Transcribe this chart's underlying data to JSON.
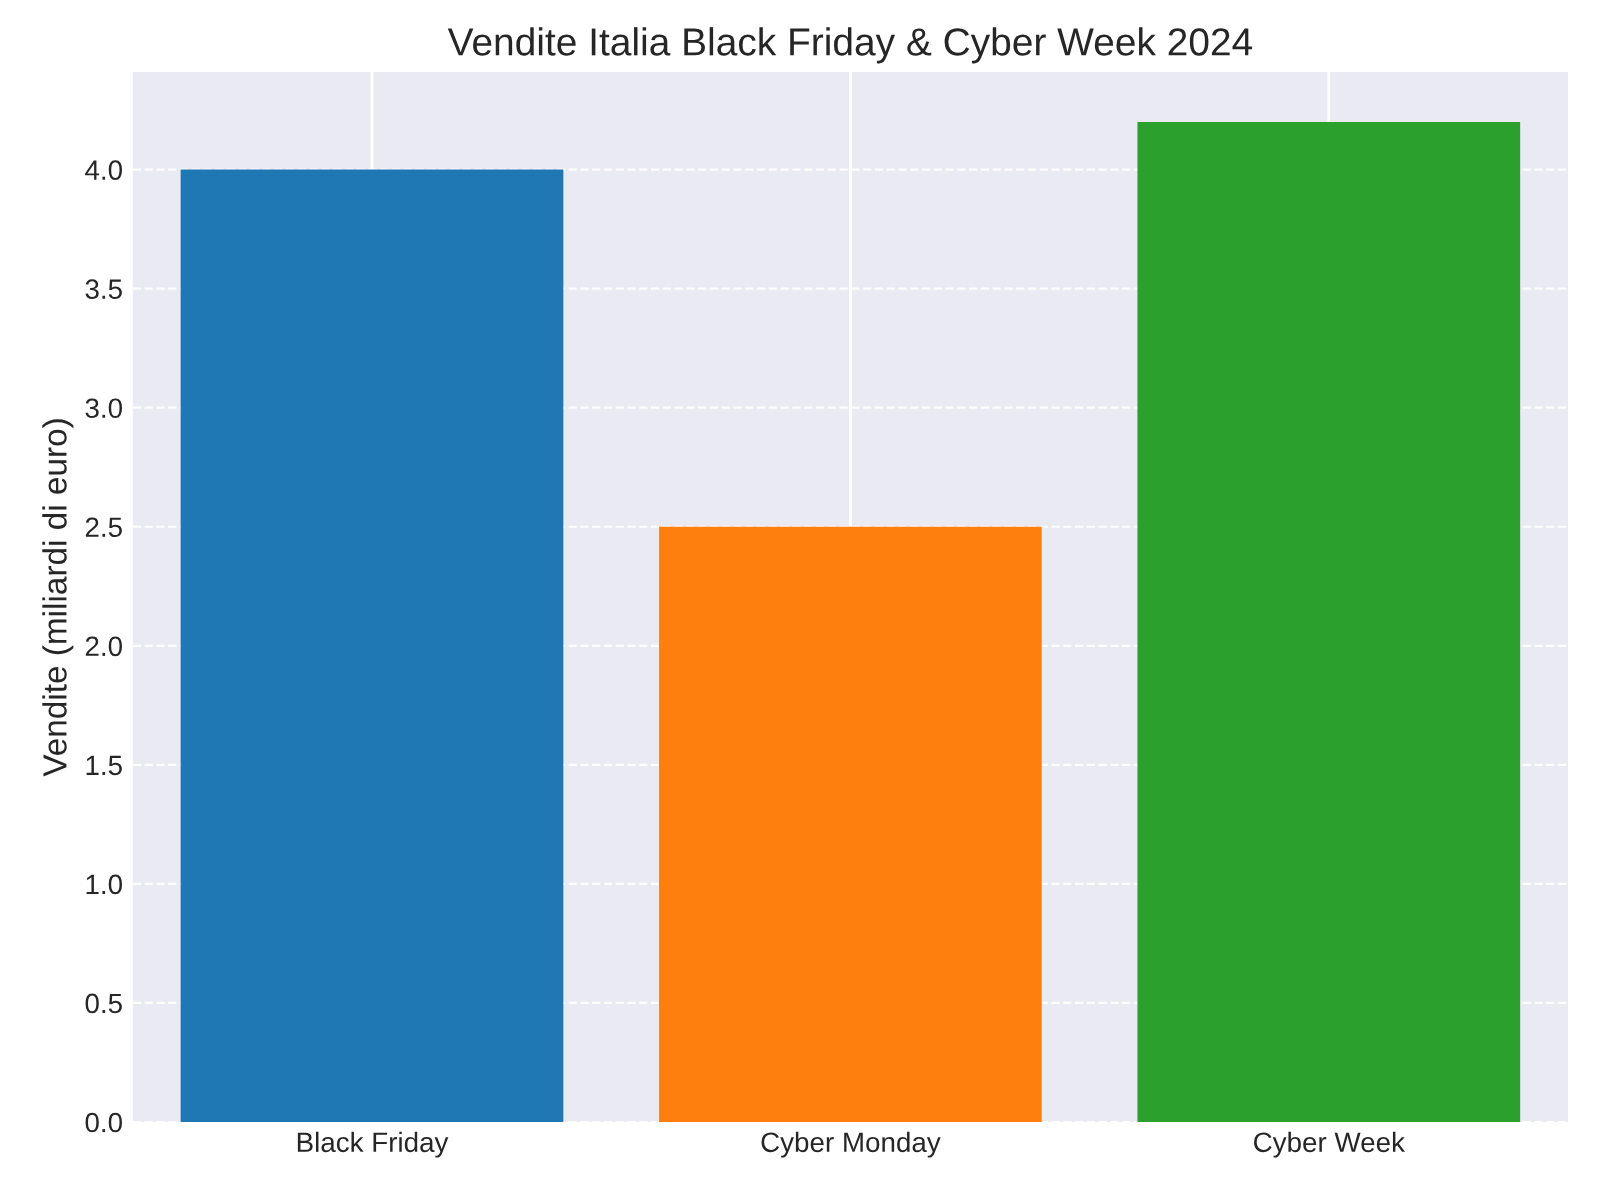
{
  "chart_data": {
    "type": "bar",
    "title": "Vendite Italia Black Friday & Cyber Week 2024",
    "ylabel": "Vendite (miliardi di euro)",
    "categories": [
      "Black Friday",
      "Cyber Monday",
      "Cyber Week"
    ],
    "values": [
      4.0,
      2.5,
      4.2
    ],
    "colors": [
      "#1f77b4",
      "#ff7f0e",
      "#2ca02c"
    ],
    "ylim": [
      0,
      4.41
    ],
    "yticks": [
      {
        "value": 0,
        "label": "0.0"
      },
      {
        "value": 0.5,
        "label": "0.5"
      },
      {
        "value": 1,
        "label": "1.0"
      },
      {
        "value": 1.5,
        "label": "1.5"
      },
      {
        "value": 2,
        "label": "2.0"
      },
      {
        "value": 2.5,
        "label": "2.5"
      },
      {
        "value": 3,
        "label": "3.0"
      },
      {
        "value": 3.5,
        "label": "3.5"
      },
      {
        "value": 4,
        "label": "4.0"
      }
    ],
    "grid": true
  }
}
